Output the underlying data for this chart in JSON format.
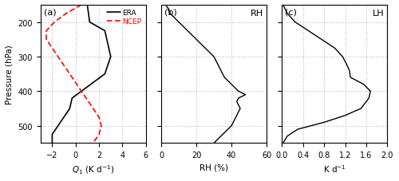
{
  "panel_a": {
    "label": "(a)",
    "era_pressure": [
      150,
      200,
      225,
      300,
      350,
      400,
      420,
      450,
      500,
      525,
      550
    ],
    "era_q1": [
      1.0,
      1.2,
      2.5,
      3.0,
      2.5,
      0.5,
      -0.3,
      -0.5,
      -1.5,
      -2.0,
      -2.0
    ],
    "ncep_pressure": [
      150,
      175,
      200,
      225,
      250,
      275,
      300,
      325,
      350,
      375,
      400,
      425,
      450,
      475,
      500,
      525,
      550
    ],
    "ncep_q1": [
      0.5,
      -0.8,
      -1.8,
      -2.5,
      -2.5,
      -2.0,
      -1.5,
      -1.0,
      -0.5,
      0.0,
      0.5,
      1.0,
      1.5,
      2.0,
      2.2,
      2.0,
      1.5
    ],
    "xlim": [
      -3,
      6
    ],
    "xticks": [
      -2,
      0,
      2,
      4,
      6
    ],
    "ylim": [
      550,
      150
    ],
    "yticks": [
      200,
      300,
      400,
      500
    ],
    "xlabel": "$Q_1$ (K d$^{-1}$)",
    "ylabel": "Pressure (hPa)",
    "legend_era": "ERA",
    "legend_ncep": "NCEP",
    "era_color": "black",
    "ncep_color": "red"
  },
  "panel_b": {
    "label": "(b)",
    "pressure": [
      150,
      155,
      160,
      165,
      170,
      175,
      180,
      185,
      190,
      195,
      200,
      210,
      220,
      230,
      240,
      250,
      260,
      270,
      280,
      290,
      300,
      310,
      320,
      330,
      340,
      350,
      360,
      365,
      370,
      375,
      380,
      385,
      390,
      395,
      400,
      405,
      410,
      415,
      420,
      430,
      440,
      450,
      460,
      470,
      480,
      490,
      500,
      510,
      520,
      530,
      540,
      550
    ],
    "rh": [
      3,
      3,
      4,
      4,
      5,
      5,
      6,
      7,
      8,
      9,
      10,
      12,
      14,
      16,
      18,
      20,
      22,
      24,
      26,
      28,
      30,
      31,
      32,
      33,
      34,
      35,
      36,
      37,
      38,
      39,
      40,
      41,
      42,
      43,
      44,
      46,
      48,
      46,
      44,
      43,
      44,
      45,
      44,
      43,
      42,
      41,
      40,
      38,
      36,
      34,
      32,
      30
    ],
    "xlim": [
      0,
      60
    ],
    "xticks": [
      0,
      20,
      40,
      60
    ],
    "ylim": [
      550,
      150
    ],
    "yticks": [
      200,
      300,
      400,
      500
    ],
    "xlabel": "RH (%)",
    "annotation": "RH",
    "color": "black"
  },
  "panel_c": {
    "label": "(c)",
    "pressure": [
      150,
      175,
      200,
      225,
      250,
      275,
      300,
      320,
      340,
      360,
      380,
      400,
      420,
      430,
      440,
      450,
      470,
      490,
      510,
      530,
      550
    ],
    "lh": [
      0.02,
      0.1,
      0.25,
      0.5,
      0.75,
      1.0,
      1.15,
      1.22,
      1.28,
      1.3,
      1.55,
      1.68,
      1.65,
      1.6,
      1.55,
      1.5,
      1.2,
      0.8,
      0.3,
      0.1,
      0.02
    ],
    "xlim": [
      0,
      2
    ],
    "xticks": [
      0,
      0.4,
      0.8,
      1.2,
      1.6,
      2
    ],
    "ylim": [
      550,
      150
    ],
    "yticks": [
      200,
      300,
      400,
      500
    ],
    "xlabel": "K d$^{-1}$",
    "annotation": "LH",
    "color": "black"
  },
  "background": "white",
  "grid_color": "#bbbbbb",
  "fig_width": 5.0,
  "fig_height": 2.28,
  "dpi": 100
}
